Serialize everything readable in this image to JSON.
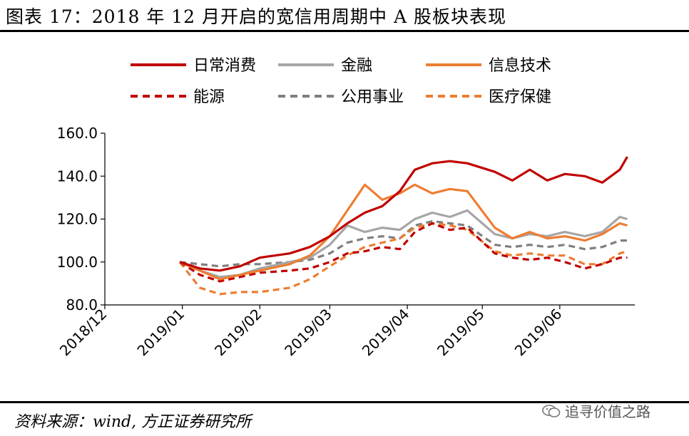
{
  "header": {
    "title": "图表 17：2018 年 12 月开启的宽信用周期中 A 股板块表现"
  },
  "footer": {
    "source": "资料来源：wind, 方正证券研究所",
    "watermark": "追寻价值之路"
  },
  "chart_data": {
    "type": "line",
    "title": "",
    "xlabel": "",
    "ylabel": "",
    "ylim": [
      80,
      160
    ],
    "yticks": [
      "80.0",
      "100.0",
      "120.0",
      "140.0",
      "160.0"
    ],
    "xticks": [
      "2018/12",
      "2019/01",
      "2019/02",
      "2019/03",
      "2019/04",
      "2019/05",
      "2019/06"
    ],
    "grid": false,
    "legend_position": "top",
    "series": [
      {
        "name": "日常消费",
        "color": "#c00000",
        "dashed": false,
        "dates": [
          "2018-12-31",
          "2019-01-08",
          "2019-01-16",
          "2019-01-24",
          "2019-02-01",
          "2019-02-13",
          "2019-02-21",
          "2019-03-01",
          "2019-03-08",
          "2019-03-15",
          "2019-03-22",
          "2019-03-29",
          "2019-04-04",
          "2019-04-11",
          "2019-04-18",
          "2019-04-25",
          "2019-05-06",
          "2019-05-13",
          "2019-05-20",
          "2019-05-27",
          "2019-06-03",
          "2019-06-11",
          "2019-06-18",
          "2019-06-25",
          "2019-06-28"
        ],
        "values": [
          100,
          97,
          96,
          98,
          102,
          104,
          107,
          112,
          118,
          123,
          126,
          133,
          143,
          146,
          147,
          146,
          142,
          138,
          143,
          138,
          141,
          140,
          137,
          143,
          149
        ]
      },
      {
        "name": "金融",
        "color": "#a6a6a6",
        "dashed": false,
        "dates": [
          "2018-12-31",
          "2019-01-08",
          "2019-01-16",
          "2019-01-24",
          "2019-02-01",
          "2019-02-13",
          "2019-02-21",
          "2019-03-01",
          "2019-03-08",
          "2019-03-15",
          "2019-03-22",
          "2019-03-29",
          "2019-04-04",
          "2019-04-11",
          "2019-04-18",
          "2019-04-25",
          "2019-05-06",
          "2019-05-13",
          "2019-05-20",
          "2019-05-27",
          "2019-06-03",
          "2019-06-11",
          "2019-06-18",
          "2019-06-25",
          "2019-06-28"
        ],
        "values": [
          100,
          96,
          93,
          94,
          97,
          100,
          102,
          108,
          117,
          114,
          116,
          115,
          120,
          123,
          121,
          124,
          113,
          111,
          113,
          112,
          114,
          112,
          114,
          121,
          120
        ]
      },
      {
        "name": "信息技术",
        "color": "#ed7d31",
        "dashed": false,
        "dates": [
          "2018-12-31",
          "2019-01-08",
          "2019-01-16",
          "2019-01-24",
          "2019-02-01",
          "2019-02-13",
          "2019-02-21",
          "2019-03-01",
          "2019-03-08",
          "2019-03-15",
          "2019-03-22",
          "2019-03-29",
          "2019-04-04",
          "2019-04-11",
          "2019-04-18",
          "2019-04-25",
          "2019-05-06",
          "2019-05-13",
          "2019-05-20",
          "2019-05-27",
          "2019-06-03",
          "2019-06-11",
          "2019-06-18",
          "2019-06-25",
          "2019-06-28"
        ],
        "values": [
          100,
          96,
          92,
          94,
          96,
          99,
          103,
          112,
          124,
          136,
          129,
          132,
          136,
          132,
          134,
          133,
          116,
          111,
          114,
          111,
          112,
          110,
          113,
          118,
          117
        ]
      },
      {
        "name": "能源",
        "color": "#c00000",
        "dashed": true,
        "dates": [
          "2018-12-31",
          "2019-01-08",
          "2019-01-16",
          "2019-01-24",
          "2019-02-01",
          "2019-02-13",
          "2019-02-21",
          "2019-03-01",
          "2019-03-08",
          "2019-03-15",
          "2019-03-22",
          "2019-03-29",
          "2019-04-04",
          "2019-04-11",
          "2019-04-18",
          "2019-04-25",
          "2019-05-06",
          "2019-05-13",
          "2019-05-20",
          "2019-05-27",
          "2019-06-03",
          "2019-06-11",
          "2019-06-18",
          "2019-06-25",
          "2019-06-28"
        ],
        "values": [
          100,
          94,
          91,
          93,
          95,
          96,
          97,
          100,
          104,
          105,
          107,
          106,
          114,
          118,
          115,
          116,
          104,
          102,
          101,
          102,
          100,
          97,
          99,
          102,
          102
        ]
      },
      {
        "name": "公用事业",
        "color": "#7f7f7f",
        "dashed": true,
        "dates": [
          "2018-12-31",
          "2019-01-08",
          "2019-01-16",
          "2019-01-24",
          "2019-02-01",
          "2019-02-13",
          "2019-02-21",
          "2019-03-01",
          "2019-03-08",
          "2019-03-15",
          "2019-03-22",
          "2019-03-29",
          "2019-04-04",
          "2019-04-11",
          "2019-04-18",
          "2019-04-25",
          "2019-05-06",
          "2019-05-13",
          "2019-05-20",
          "2019-05-27",
          "2019-06-03",
          "2019-06-11",
          "2019-06-18",
          "2019-06-25",
          "2019-06-28"
        ],
        "values": [
          100,
          99,
          98,
          99,
          99,
          100,
          101,
          104,
          109,
          111,
          112,
          111,
          117,
          119,
          118,
          117,
          108,
          107,
          108,
          107,
          108,
          106,
          107,
          110,
          110
        ]
      },
      {
        "name": "医疗保健",
        "color": "#ed7d31",
        "dashed": true,
        "dates": [
          "2018-12-31",
          "2019-01-08",
          "2019-01-16",
          "2019-01-24",
          "2019-02-01",
          "2019-02-13",
          "2019-02-21",
          "2019-03-01",
          "2019-03-08",
          "2019-03-15",
          "2019-03-22",
          "2019-03-29",
          "2019-04-04",
          "2019-04-11",
          "2019-04-18",
          "2019-04-25",
          "2019-05-06",
          "2019-05-13",
          "2019-05-20",
          "2019-05-27",
          "2019-06-03",
          "2019-06-11",
          "2019-06-18",
          "2019-06-25",
          "2019-06-28"
        ],
        "values": [
          100,
          88,
          85,
          86,
          86,
          88,
          92,
          98,
          103,
          107,
          109,
          111,
          116,
          118,
          117,
          115,
          105,
          103,
          104,
          103,
          103,
          99,
          99,
          104,
          105
        ]
      }
    ]
  }
}
